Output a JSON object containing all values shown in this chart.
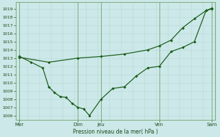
{
  "xlabel": "Pression niveau de la mer( hPa )",
  "background_color": "#cce8e8",
  "grid_color_major": "#aaaaaa",
  "grid_color_minor": "#dddddd",
  "line_color": "#1a5c1a",
  "ylim": [
    1005.5,
    1019.8
  ],
  "yticks": [
    1006,
    1007,
    1008,
    1009,
    1010,
    1011,
    1012,
    1013,
    1014,
    1015,
    1016,
    1017,
    1018,
    1019
  ],
  "xlim": [
    -0.2,
    11.2
  ],
  "day_lines": [
    0,
    3.33,
    4.67,
    8.0,
    11.0
  ],
  "xtick_positions": [
    0,
    3.33,
    4.67,
    8.0,
    11.0
  ],
  "xtick_labels": [
    "Mer",
    "Dim",
    "Jeu",
    "Ven",
    "Sam"
  ],
  "series_sparse_x": [
    0,
    1.67,
    3.33,
    4.67,
    6.0,
    7.33,
    8.0,
    8.67,
    9.33,
    10.0,
    10.67,
    11.0
  ],
  "series_sparse_y": [
    1013.1,
    1012.5,
    1013.0,
    1013.2,
    1013.5,
    1014.0,
    1014.5,
    1015.2,
    1016.7,
    1017.8,
    1018.8,
    1019.1
  ],
  "series_dense_x": [
    0,
    0.67,
    1.33,
    1.67,
    2.0,
    2.33,
    2.67,
    3.0,
    3.33,
    3.67,
    4.0,
    4.67,
    5.33,
    6.0,
    6.67,
    7.33,
    8.0,
    8.67,
    9.33,
    10.0,
    10.67,
    11.0
  ],
  "series_dense_y": [
    1013.2,
    1012.5,
    1011.8,
    1009.5,
    1008.8,
    1008.3,
    1008.2,
    1007.5,
    1007.0,
    1006.8,
    1006.0,
    1008.0,
    1009.3,
    1009.5,
    1010.8,
    1011.8,
    1012.0,
    1013.8,
    1014.3,
    1015.0,
    1018.8,
    1019.0
  ]
}
